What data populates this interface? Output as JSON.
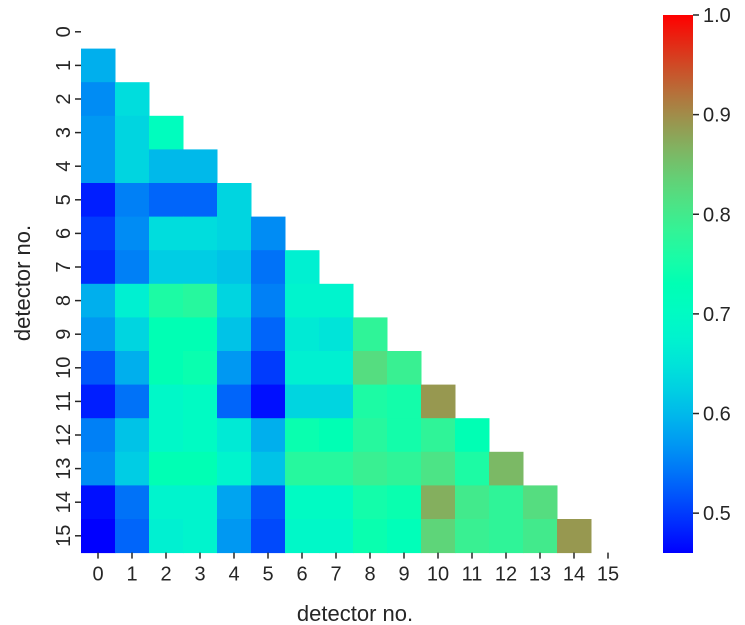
{
  "chart_data": {
    "type": "heatmap",
    "xlabel": "detector no.",
    "ylabel": "detector no.",
    "x_tick_labels": [
      "0",
      "1",
      "2",
      "3",
      "4",
      "5",
      "6",
      "7",
      "8",
      "9",
      "10",
      "11",
      "12",
      "13",
      "14",
      "15"
    ],
    "y_tick_labels": [
      "0",
      "1",
      "2",
      "3",
      "4",
      "5",
      "6",
      "7",
      "8",
      "9",
      "10",
      "11",
      "12",
      "13",
      "14",
      "15"
    ],
    "colormap": "rainbow",
    "vmin": 0.46,
    "vmax": 1.0,
    "colorbar_ticks": [
      "0.5",
      "0.6",
      "0.7",
      "0.8",
      "0.9",
      "1.0"
    ],
    "colorbar_tick_values": [
      0.5,
      0.6,
      0.7,
      0.8,
      0.9,
      1.0
    ],
    "mask": "upper triangle including diagonal",
    "values": [
      [],
      [
        0.59
      ],
      [
        0.56,
        0.64
      ],
      [
        0.57,
        0.63,
        0.71
      ],
      [
        0.57,
        0.63,
        0.6,
        0.6
      ],
      [
        0.48,
        0.55,
        0.53,
        0.53,
        0.63
      ],
      [
        0.5,
        0.56,
        0.64,
        0.64,
        0.63,
        0.56
      ],
      [
        0.49,
        0.55,
        0.62,
        0.62,
        0.61,
        0.54,
        0.67
      ],
      [
        0.59,
        0.67,
        0.76,
        0.77,
        0.63,
        0.55,
        0.68,
        0.68
      ],
      [
        0.57,
        0.63,
        0.73,
        0.73,
        0.61,
        0.53,
        0.66,
        0.65,
        0.78
      ],
      [
        0.52,
        0.59,
        0.73,
        0.74,
        0.57,
        0.5,
        0.67,
        0.67,
        0.82,
        0.79
      ],
      [
        0.48,
        0.54,
        0.69,
        0.7,
        0.53,
        0.47,
        0.63,
        0.63,
        0.76,
        0.75,
        0.89
      ],
      [
        0.55,
        0.61,
        0.69,
        0.7,
        0.66,
        0.59,
        0.74,
        0.73,
        0.77,
        0.75,
        0.78,
        0.73
      ],
      [
        0.56,
        0.62,
        0.73,
        0.73,
        0.68,
        0.61,
        0.77,
        0.77,
        0.79,
        0.78,
        0.81,
        0.76,
        0.86
      ],
      [
        0.47,
        0.54,
        0.68,
        0.68,
        0.58,
        0.52,
        0.7,
        0.7,
        0.75,
        0.74,
        0.87,
        0.8,
        0.78,
        0.82
      ],
      [
        0.46,
        0.53,
        0.67,
        0.68,
        0.57,
        0.51,
        0.69,
        0.69,
        0.74,
        0.72,
        0.83,
        0.79,
        0.78,
        0.8,
        0.89
      ]
    ]
  }
}
